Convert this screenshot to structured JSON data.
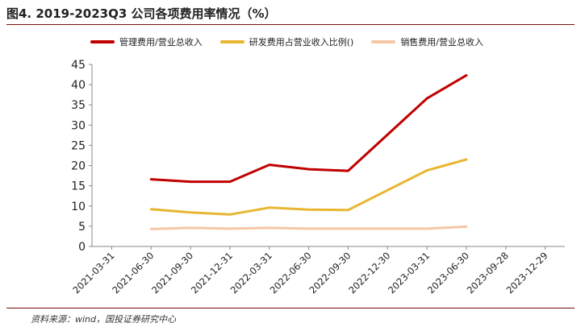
{
  "header": {
    "title": "图4. 2019-2023Q3 公司各项费用率情况（%）"
  },
  "footer": {
    "source": "资料来源：wind，国投证券研究中心"
  },
  "chart_data": {
    "type": "line",
    "x": [
      "2021-03-31",
      "2021-06-30",
      "2021-09-30",
      "2021-12-31",
      "2022-03-31",
      "2022-06-30",
      "2022-09-30",
      "2022-12-30",
      "2023-03-31",
      "2023-06-30",
      "2023-09-28",
      "2023-12-29"
    ],
    "series": [
      {
        "name": "管理费用/营业总收入",
        "color": "#c00000",
        "values": [
          null,
          16.6,
          16.0,
          16.0,
          20.2,
          19.1,
          18.7,
          null,
          36.6,
          42.3,
          null,
          null
        ]
      },
      {
        "name": "研发费用占营业收入比例()",
        "color": "#e8b631",
        "values": [
          null,
          9.2,
          8.4,
          7.9,
          9.6,
          9.1,
          9.0,
          null,
          18.8,
          21.5,
          null,
          null
        ]
      },
      {
        "name": "销售费用/营业总收入",
        "color": "#f7c6a7",
        "values": [
          null,
          4.3,
          4.6,
          4.4,
          4.6,
          4.4,
          4.4,
          null,
          4.4,
          4.9,
          null,
          null
        ]
      }
    ],
    "ylim": [
      0,
      45
    ],
    "yticks": [
      0,
      5,
      10,
      15,
      20,
      25,
      30,
      35,
      40,
      45
    ],
    "legend": "top",
    "grid": false,
    "title": "",
    "xlabel": "",
    "ylabel": ""
  }
}
